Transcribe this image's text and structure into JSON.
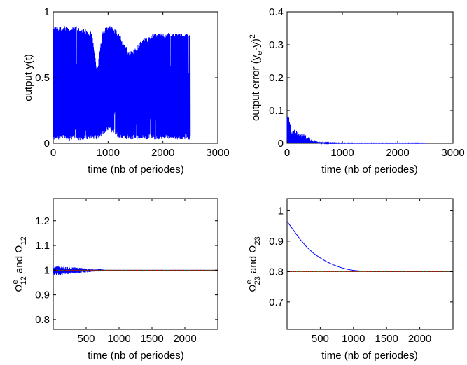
{
  "chart_data": [
    {
      "type": "line",
      "xlabel": "time (nb of periodes)",
      "ylabel": "output y(t)",
      "xlim": [
        0,
        3000
      ],
      "ylim": [
        0,
        1
      ],
      "x_ticks": [
        0,
        1000,
        2000,
        3000
      ],
      "y_ticks": [
        0,
        0.5,
        1
      ],
      "x_tick_labels": [
        "0",
        "1000",
        "2000",
        "3000"
      ],
      "y_tick_labels": [
        "0",
        "0.5",
        "1"
      ],
      "grid": false,
      "series": [
        {
          "color": "#0000ff",
          "style": "dense oscillation",
          "x": [
            0,
            100,
            200,
            300,
            400,
            500,
            600,
            700,
            800,
            900,
            1000,
            1100,
            1200,
            1300,
            1400,
            1500,
            1600,
            1700,
            1800,
            1900,
            2000,
            2100,
            2200,
            2300,
            2400,
            2500
          ],
          "upper": [
            0.9,
            0.88,
            0.9,
            0.87,
            0.9,
            0.88,
            0.87,
            0.85,
            0.55,
            0.86,
            0.9,
            0.88,
            0.84,
            0.75,
            0.7,
            0.73,
            0.78,
            0.81,
            0.83,
            0.84,
            0.84,
            0.84,
            0.84,
            0.84,
            0.84,
            0.84
          ],
          "lower": [
            0.02,
            0.03,
            0.03,
            0.02,
            0.03,
            0.02,
            0.03,
            0.03,
            0.03,
            0.06,
            0.1,
            0.07,
            0.04,
            0.03,
            0.03,
            0.03,
            0.03,
            0.03,
            0.03,
            0.03,
            0.03,
            0.03,
            0.03,
            0.03,
            0.03,
            0.03
          ]
        }
      ]
    },
    {
      "type": "line",
      "xlabel": "time (nb of periodes)",
      "ylabel": "output error (y",
      "ylabel_sub": "e",
      "ylabel_mid": "-y)",
      "ylabel_sup": "2",
      "xlim": [
        0,
        3000
      ],
      "ylim": [
        0,
        0.4
      ],
      "x_ticks": [
        0,
        1000,
        2000,
        3000
      ],
      "y_ticks": [
        0,
        0.1,
        0.2,
        0.3,
        0.4
      ],
      "x_tick_labels": [
        "0",
        "1000",
        "2000",
        "3000"
      ],
      "y_tick_labels": [
        "0",
        "0.1",
        "0.2",
        "0.3",
        "0.4"
      ],
      "grid": false,
      "series": [
        {
          "color": "#0000ff",
          "style": "decaying spikes",
          "x": [
            0,
            25,
            50,
            100,
            150,
            200,
            300,
            400,
            500,
            600,
            700,
            1000,
            1500,
            2000,
            2500
          ],
          "upper": [
            0.1,
            0.09,
            0.06,
            0.045,
            0.04,
            0.035,
            0.03,
            0.018,
            0.01,
            0.005,
            0.002,
            0.001,
            0.001,
            0.001,
            0.001
          ],
          "lower": [
            0,
            0,
            0,
            0,
            0,
            0,
            0,
            0,
            0,
            0,
            0,
            0,
            0,
            0,
            0
          ]
        }
      ]
    },
    {
      "type": "line",
      "xlabel": "time (nb of periodes)",
      "ylabel_parts": {
        "main1": "Ω",
        "sup1": "e",
        "sub1": "12",
        "mid": " and Ω",
        "sub2": "12"
      },
      "xlim": [
        0,
        2500
      ],
      "ylim": [
        0.76,
        1.29
      ],
      "x_ticks": [
        500,
        1000,
        1500,
        2000
      ],
      "y_ticks": [
        0.8,
        0.9,
        1,
        1.1,
        1.2
      ],
      "x_tick_labels": [
        "500",
        "1000",
        "1500",
        "2000"
      ],
      "y_tick_labels": [
        "0.8",
        "0.9",
        "1",
        "1.1",
        "1.2"
      ],
      "grid": false,
      "series": [
        {
          "color": "#0000ff",
          "style": "estimate band",
          "x": [
            0,
            100,
            200,
            300,
            400,
            500,
            600,
            700,
            800,
            2500
          ],
          "upper": [
            1.02,
            1.015,
            1.013,
            1.012,
            1.01,
            1.008,
            1.005,
            1.002,
            1,
            1
          ],
          "lower": [
            0.975,
            0.98,
            0.982,
            0.985,
            0.988,
            0.99,
            0.994,
            0.998,
            1,
            1
          ]
        },
        {
          "color": "#008000",
          "style": "reference",
          "x": [
            0,
            2500
          ],
          "values": [
            1,
            1
          ]
        }
      ]
    },
    {
      "type": "line",
      "xlabel": "time (nb of periodes)",
      "ylabel_parts": {
        "main1": "Ω",
        "sup1": "e",
        "sub1": "23",
        "mid": " and Ω",
        "sub2": "23"
      },
      "xlim": [
        0,
        2500
      ],
      "ylim": [
        0.61,
        1.04
      ],
      "x_ticks": [
        500,
        1000,
        1500,
        2000
      ],
      "y_ticks": [
        0.7,
        0.8,
        0.9,
        1
      ],
      "x_tick_labels": [
        "500",
        "1000",
        "1500",
        "2000"
      ],
      "y_tick_labels": [
        "0.7",
        "0.8",
        "0.9",
        "1"
      ],
      "grid": false,
      "series": [
        {
          "color": "#0000ff",
          "style": "estimate",
          "x": [
            0,
            100,
            200,
            300,
            400,
            500,
            600,
            700,
            800,
            900,
            1000,
            1100,
            1200,
            1300,
            2500
          ],
          "values": [
            0.965,
            0.935,
            0.905,
            0.88,
            0.86,
            0.845,
            0.832,
            0.822,
            0.814,
            0.808,
            0.804,
            0.802,
            0.801,
            0.8,
            0.8
          ]
        },
        {
          "color": "#008000",
          "style": "reference",
          "x": [
            0,
            2500
          ],
          "values": [
            0.8,
            0.8
          ]
        }
      ]
    }
  ]
}
